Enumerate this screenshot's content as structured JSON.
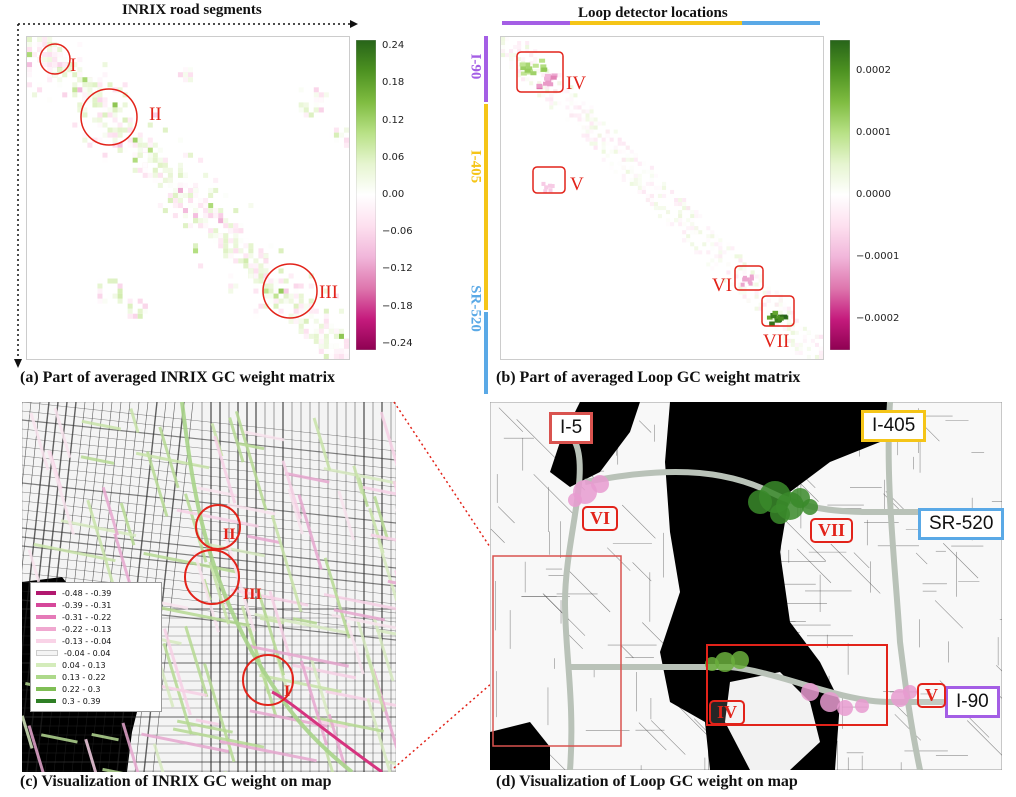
{
  "panel_a": {
    "title": "INRIX road segments",
    "caption": "(a) Part of averaged INRIX GC weight matrix",
    "ticks": [
      "0.24",
      "0.18",
      "0.12",
      "0.06",
      "0.00",
      "−0.06",
      "−0.12",
      "−0.18",
      "−0.24"
    ],
    "labels": [
      "I",
      "II",
      "III"
    ]
  },
  "panel_b": {
    "title": "Loop detector locations",
    "caption": "(b) Part of averaged Loop GC weight matrix",
    "ticks": [
      "0.0002",
      "0.0001",
      "0.0000",
      "−0.0001",
      "−0.0002"
    ],
    "highways": [
      "I-90",
      "I-405",
      "SR-520"
    ],
    "labels": [
      "IV",
      "V",
      "VI",
      "VII"
    ]
  },
  "panel_c": {
    "caption": "(c) Visualization of INRIX GC weight on map",
    "labels": [
      "II",
      "III",
      "I"
    ],
    "legend": [
      "-0.48 - -0.39",
      "-0.39 - -0.31",
      "-0.31 - -0.22",
      "-0.22 - -0.13",
      "-0.13 - -0.04",
      "-0.04 - 0.04",
      "0.04 - 0.13",
      "0.13 - 0.22",
      "0.22 - 0.3",
      "0.3 - 0.39"
    ]
  },
  "panel_d": {
    "caption": "(d) Visualization of Loop GC weight on map",
    "highways": [
      "I-5",
      "I-405",
      "SR-520",
      "I-90"
    ],
    "labels": [
      "VI",
      "VII",
      "V",
      "IV"
    ]
  },
  "colors": {
    "positive": "#1b7837",
    "negative": "#c51b7d",
    "i90": "#a45ee5",
    "i405": "#f5c518",
    "sr520": "#5aa9e6",
    "i5": "#d9534f",
    "annot": "#e2231a"
  },
  "chart_data": [
    {
      "type": "heatmap",
      "title": "INRIX road segments",
      "colorbar": {
        "min": -0.24,
        "max": 0.24,
        "ticks": [
          0.24,
          0.18,
          0.12,
          0.06,
          0.0,
          -0.06,
          -0.12,
          -0.18,
          -0.24
        ]
      },
      "annotations": [
        "I",
        "II",
        "III"
      ]
    },
    {
      "type": "heatmap",
      "title": "Loop detector locations",
      "colorbar": {
        "min": -0.00025,
        "max": 0.00025,
        "ticks": [
          0.0002,
          0.0001,
          0.0,
          -0.0001,
          -0.0002
        ]
      },
      "row_groups": [
        "I-90",
        "I-405",
        "SR-520"
      ],
      "annotations": [
        "IV",
        "V",
        "VI",
        "VII"
      ]
    }
  ]
}
